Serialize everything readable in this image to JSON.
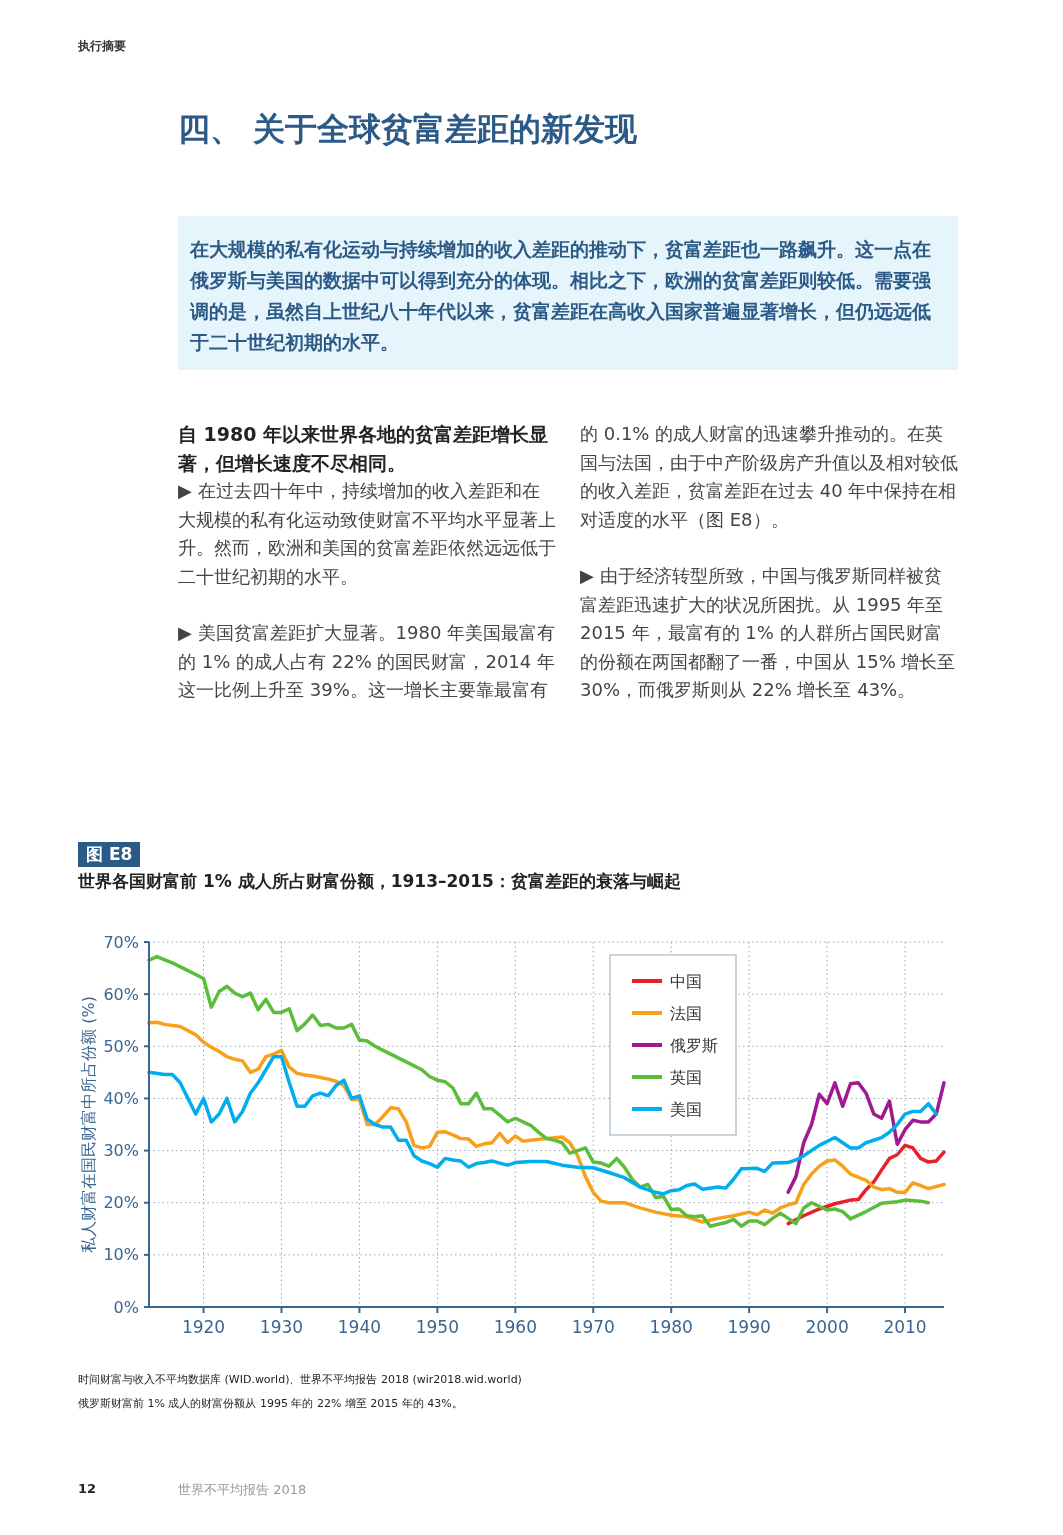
{
  "chart_data": {
    "type": "line",
    "title": "世界各国财富前 1% 成人所占财富份额，1913–2015：贫富差距的衰落与崛起",
    "ylabel": "私人财富在国民财富中所占份额 (%)",
    "xlim": [
      1913,
      2015
    ],
    "xticks": [
      1920,
      1930,
      1940,
      1950,
      1960,
      1970,
      1980,
      1990,
      2000,
      2010
    ],
    "ylim": [
      0,
      70
    ],
    "yticks": [
      {
        "value": 0,
        "label": "0%"
      },
      {
        "value": 10,
        "label": "10%"
      },
      {
        "value": 20,
        "label": "20%"
      },
      {
        "value": 30,
        "label": "30%"
      },
      {
        "value": 40,
        "label": "40%"
      },
      {
        "value": 50,
        "label": "50%"
      },
      {
        "value": 60,
        "label": "60%"
      },
      {
        "value": 70,
        "label": "70%"
      }
    ],
    "grid": true,
    "legend": "top right",
    "series": [
      {
        "name": "中国",
        "color": "#e8202a",
        "x": [
          1995,
          1997,
          1999,
          2001,
          2003,
          2004,
          2005,
          2006,
          2007,
          2008,
          2009,
          2010,
          2011,
          2012,
          2013,
          2014,
          2015
        ],
        "values": [
          16,
          17.5,
          18.8,
          19.8,
          20.5,
          20.6,
          22.5,
          24,
          26.3,
          28.5,
          29.2,
          31,
          30.5,
          28.5,
          27.8,
          28,
          29.7
        ]
      },
      {
        "name": "法国",
        "color": "#f7a11a",
        "x": [
          1913,
          1914,
          1915,
          1917,
          1918,
          1919,
          1920,
          1921,
          1922,
          1923,
          1924,
          1925,
          1926,
          1927,
          1928,
          1929,
          1930,
          1931,
          1932,
          1933,
          1934,
          1935,
          1936,
          1937,
          1938,
          1939,
          1940,
          1941,
          1942,
          1943,
          1944,
          1945,
          1946,
          1947,
          1948,
          1949,
          1950,
          1951,
          1952,
          1953,
          1954,
          1955,
          1956,
          1957,
          1958,
          1959,
          1960,
          1961,
          1962,
          1964,
          1966,
          1967,
          1968,
          1969,
          1970,
          1971,
          1972,
          1974,
          1976,
          1978,
          1980,
          1982,
          1984,
          1986,
          1988,
          1990,
          1991,
          1992,
          1993,
          1994,
          1995,
          1996,
          1997,
          1998,
          1999,
          2000,
          2001,
          2002,
          2003,
          2005,
          2006,
          2007,
          2008,
          2009,
          2010,
          2011,
          2012,
          2013,
          2015
        ],
        "values": [
          54.5,
          54.6,
          54.2,
          53.8,
          53,
          52.2,
          50.8,
          49.8,
          49,
          48,
          47.5,
          47.2,
          45,
          45.6,
          48,
          48.5,
          49.2,
          46,
          44.8,
          44.5,
          44.3,
          44,
          43.7,
          43.3,
          42.5,
          39.8,
          39.8,
          35,
          35,
          36.5,
          38.2,
          38,
          35.5,
          31,
          30.5,
          30.8,
          33.5,
          33.6,
          33,
          32.3,
          32.2,
          30.8,
          31.3,
          31.5,
          33.3,
          31.5,
          32.8,
          31.8,
          32,
          32.3,
          32.6,
          31.5,
          29,
          25,
          22,
          20.3,
          20,
          20,
          19,
          18.2,
          17.6,
          17.3,
          16.3,
          17,
          17.5,
          18.2,
          17.7,
          18.6,
          18,
          19,
          19.6,
          20,
          23.5,
          25.5,
          27,
          28,
          28.2,
          27,
          25.5,
          24.3,
          23,
          22.5,
          22.7,
          22,
          22,
          23.8,
          23.3,
          22.7,
          23.5
        ]
      },
      {
        "name": "俄罗斯",
        "color": "#a0198e",
        "x": [
          1995,
          1996,
          1997,
          1998,
          1999,
          2000,
          2001,
          2002,
          2003,
          2004,
          2005,
          2006,
          2007,
          2008,
          2009,
          2010,
          2011,
          2012,
          2013,
          2014,
          2015
        ],
        "values": [
          22,
          25,
          31.5,
          35,
          40.8,
          39,
          43,
          38.5,
          42.8,
          43,
          41,
          37,
          36.2,
          39.5,
          31.2,
          34,
          35.8,
          35.5,
          35.5,
          37,
          43
        ]
      },
      {
        "name": "英国",
        "color": "#5bbd3a",
        "x": [
          1913,
          1914,
          1916,
          1918,
          1920,
          1921,
          1922,
          1923,
          1924,
          1925,
          1926,
          1927,
          1928,
          1929,
          1930,
          1931,
          1932,
          1933,
          1934,
          1935,
          1936,
          1937,
          1938,
          1939,
          1940,
          1941,
          1942,
          1944,
          1946,
          1948,
          1949,
          1950,
          1951,
          1952,
          1953,
          1954,
          1955,
          1956,
          1957,
          1958,
          1959,
          1960,
          1962,
          1963,
          1964,
          1965,
          1966,
          1967,
          1968,
          1969,
          1970,
          1971,
          1972,
          1973,
          1974,
          1975,
          1976,
          1977,
          1978,
          1979,
          1980,
          1981,
          1982,
          1983,
          1984,
          1985,
          1987,
          1988,
          1989,
          1990,
          1991,
          1992,
          1993,
          1994,
          1995,
          1996,
          1997,
          1998,
          1999,
          2000,
          2001,
          2002,
          2003,
          2005,
          2007,
          2009,
          2010,
          2012,
          2013
        ],
        "values": [
          66.5,
          67.2,
          66,
          64.5,
          63,
          57.5,
          60.5,
          61.5,
          60.2,
          59.5,
          60.2,
          57,
          59,
          56.5,
          56.5,
          57.2,
          53,
          54.3,
          56,
          54,
          54.2,
          53.5,
          53.5,
          54.2,
          51.2,
          51,
          50,
          48.5,
          47,
          45.5,
          44.2,
          43.5,
          43.2,
          42,
          39,
          39,
          41,
          38,
          38,
          36.8,
          35.5,
          36.2,
          34.8,
          33.5,
          32.3,
          32,
          31.5,
          29.5,
          30,
          30.5,
          27.8,
          27.6,
          27,
          28.5,
          26.8,
          24.5,
          23,
          23.5,
          21,
          21.2,
          18.7,
          18.8,
          17.5,
          17.3,
          17.5,
          15.5,
          16.2,
          16.8,
          15.5,
          16.5,
          16.5,
          15.8,
          17,
          18,
          17,
          16,
          19,
          20,
          19.3,
          18.6,
          18.8,
          18.3,
          16.9,
          18.3,
          19.9,
          20.2,
          20.5,
          20.3,
          20
        ]
      },
      {
        "name": "美国",
        "color": "#00aeef",
        "x": [
          1913,
          1915,
          1916,
          1917,
          1918,
          1919,
          1920,
          1921,
          1922,
          1923,
          1924,
          1925,
          1926,
          1927,
          1928,
          1929,
          1930,
          1931,
          1932,
          1933,
          1934,
          1935,
          1936,
          1937,
          1938,
          1939,
          1940,
          1941,
          1942,
          1943,
          1944,
          1945,
          1946,
          1947,
          1948,
          1949,
          1950,
          1951,
          1952,
          1953,
          1954,
          1955,
          1956,
          1957,
          1958,
          1959,
          1960,
          1962,
          1964,
          1966,
          1968,
          1970,
          1972,
          1974,
          1976,
          1978,
          1979,
          1980,
          1981,
          1982,
          1983,
          1984,
          1986,
          1987,
          1988,
          1989,
          1991,
          1992,
          1993,
          1995,
          1996,
          1997,
          1999,
          2001,
          2003,
          2004,
          2005,
          2007,
          2008,
          2009,
          2010,
          2011,
          2012,
          2013,
          2014
        ],
        "values": [
          45,
          44.6,
          44.6,
          43,
          40,
          37,
          40,
          35.5,
          37,
          40,
          35.5,
          37.5,
          41,
          43,
          45.5,
          48,
          48,
          43,
          38.5,
          38.5,
          40.5,
          41,
          40.5,
          42.5,
          43.5,
          40,
          40.5,
          36,
          35,
          34.5,
          34.5,
          32,
          32,
          29,
          28,
          27.5,
          26.8,
          28.5,
          28.2,
          28,
          26.8,
          27.5,
          27.7,
          28,
          27.6,
          27.2,
          27.7,
          27.9,
          27.9,
          27.2,
          26.8,
          26.7,
          25.8,
          24.8,
          23,
          22,
          21.7,
          22.3,
          22.5,
          23.3,
          23.6,
          22.6,
          23,
          22.8,
          24.5,
          26.5,
          26.6,
          26,
          27.6,
          27.7,
          28.2,
          29,
          31,
          32.5,
          30.5,
          30.5,
          31.5,
          32.5,
          33.5,
          35,
          37,
          37.5,
          37.5,
          39,
          37
        ]
      }
    ],
    "annotations": [
      "执行摘要",
      "四、 关于全球贫富差距的新发现",
      "在大规模的私有化运动与持续增加的收入差距的推动下，贫富差距也一路飙升。这一点在俄罗斯与美国的数据中可以得到充分的体现。相比之下，欧洲的贫富差距则较低。需要强调的是，虽然自上世纪八十年代以来，贫富差距在高收入国家普遍显著增长，但仍远远低于二十世纪初期的水平。",
      "自 1980 年以来世界各地的贫富差距增长显著，但增长速度不尽相同。",
      "▶ 在过去四十年中，持续增加的收入差距和在大规模的私有化运动致使财富不平均水平显著上升。然而，欧洲和美国的贫富差距依然远远低于二十世纪初期的水平。",
      "▶ 美国贫富差距扩大显著。1980 年美国最富有的 1% 的成人占有 22% 的国民财富，2014 年这一比例上升至 39%。这一增长主要靠最富有的 0.1% 的成人财富的迅速攀升推动的。在英国与法国，由于中产阶级房产升值以及相对较低的收入差距，贫富差距在过去 40 年中保持在相对适度的水平（图 E8）。",
      "▶ 由于经济转型所致，中国与俄罗斯同样被贫富差距迅速扩大的状况所困扰。从 1995 年至 2015 年，最富有的 1% 的人群所占国民财富的份额在两国都翻了一番，中国从 15% 增长至 30%，而俄罗斯则从 22% 增长至 43%。",
      "图 E8",
      "时间财富与收入不平均数据库 (WID.world)、世界不平均报告 2018 (wir2018.wid.world)",
      "俄罗斯财富前 1% 成人的财富份额从 1995 年的 22% 增至 2015 年的 43%。",
      "12",
      "世界不平均报告 2018"
    ]
  }
}
